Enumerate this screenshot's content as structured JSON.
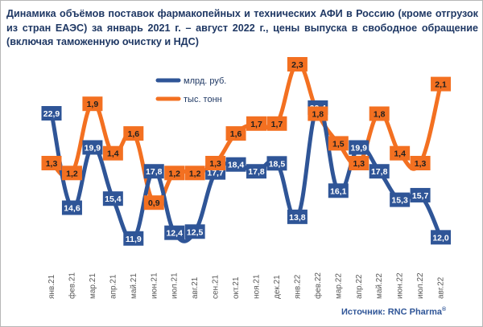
{
  "title": "Динамика объёмов поставок фармакопейных и технических АФИ в Россию (кроме отгрузок из стран ЕАЭС) за январь 2021 г. – август 2022 г., цены выпуска в свободное обращение (включая таможенную очистку и НДС)",
  "source": "Источник: RNC Pharma",
  "source_mark": "®",
  "colors": {
    "series_1": "#2f5597",
    "series_2": "#f37021",
    "title": "#1f3864",
    "axis_text": "#595959"
  },
  "chart_data": {
    "type": "line",
    "categories": [
      "янв.21",
      "фев.21",
      "мар.21",
      "апр.21",
      "май.21",
      "июн.21",
      "июл.21",
      "авг.21",
      "сен.21",
      "окт.21",
      "ноя.21",
      "дек.21",
      "янв.22",
      "фев.22",
      "мар.22",
      "апр.22",
      "май.22",
      "июн.22",
      "июл.22",
      "авг.22"
    ],
    "series": [
      {
        "name": "млрд. руб.",
        "values": [
          22.9,
          14.6,
          19.9,
          15.4,
          11.9,
          17.8,
          12.4,
          12.5,
          17.7,
          18.4,
          17.8,
          18.5,
          13.8,
          23.4,
          16.1,
          19.9,
          17.8,
          15.3,
          15.7,
          12.0
        ],
        "labels": [
          "22,9",
          "14,6",
          "19,9",
          "15,4",
          "11,9",
          "17,8",
          "12,4",
          "12,5",
          "17,7",
          "18,4",
          "17,8",
          "18,5",
          "13,8",
          "23,4",
          "16,1",
          "19,9",
          "17,8",
          "15,3",
          "15,7",
          "12,0"
        ]
      },
      {
        "name": "тыс. тонн",
        "values": [
          1.3,
          1.2,
          1.9,
          1.4,
          1.6,
          0.9,
          1.2,
          1.2,
          1.3,
          1.6,
          1.7,
          1.7,
          2.3,
          1.8,
          1.5,
          1.3,
          1.8,
          1.4,
          1.3,
          2.1
        ],
        "labels": [
          "1,3",
          "1,2",
          "1,9",
          "1,4",
          "1,6",
          "0,9",
          "1,2",
          "1,2",
          "1,3",
          "1,6",
          "1,7",
          "1,7",
          "2,3",
          "1,8",
          "1,5",
          "1,3",
          "1,8",
          "1,4",
          "1,3",
          "2,1"
        ]
      }
    ],
    "axes": "hidden value axes; category labels rotated vertically at the bottom",
    "legend": "top-left inside plot",
    "grid": false
  }
}
